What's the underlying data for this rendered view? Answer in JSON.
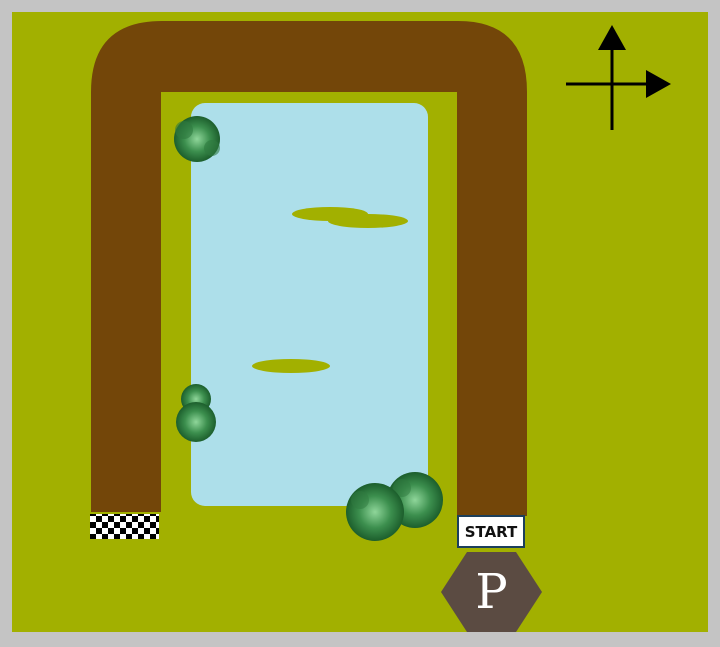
{
  "game": {
    "start_label": "START",
    "parking_symbol": "P"
  },
  "colors": {
    "frame": "#c4c4c4",
    "grass": "#a2b000",
    "road": "#734609",
    "water": "#addfea",
    "lilypad": "#a2b000",
    "parking": "#5b4b42",
    "arrow": "#000000",
    "bush_dark": "#1c5e2c",
    "bush_light": "#7fc88a"
  },
  "icons": {
    "compass": "compass-arrows-icon",
    "finish": "checkered-flag-icon",
    "parking": "parking-sign-icon",
    "bush": "bush-icon"
  }
}
